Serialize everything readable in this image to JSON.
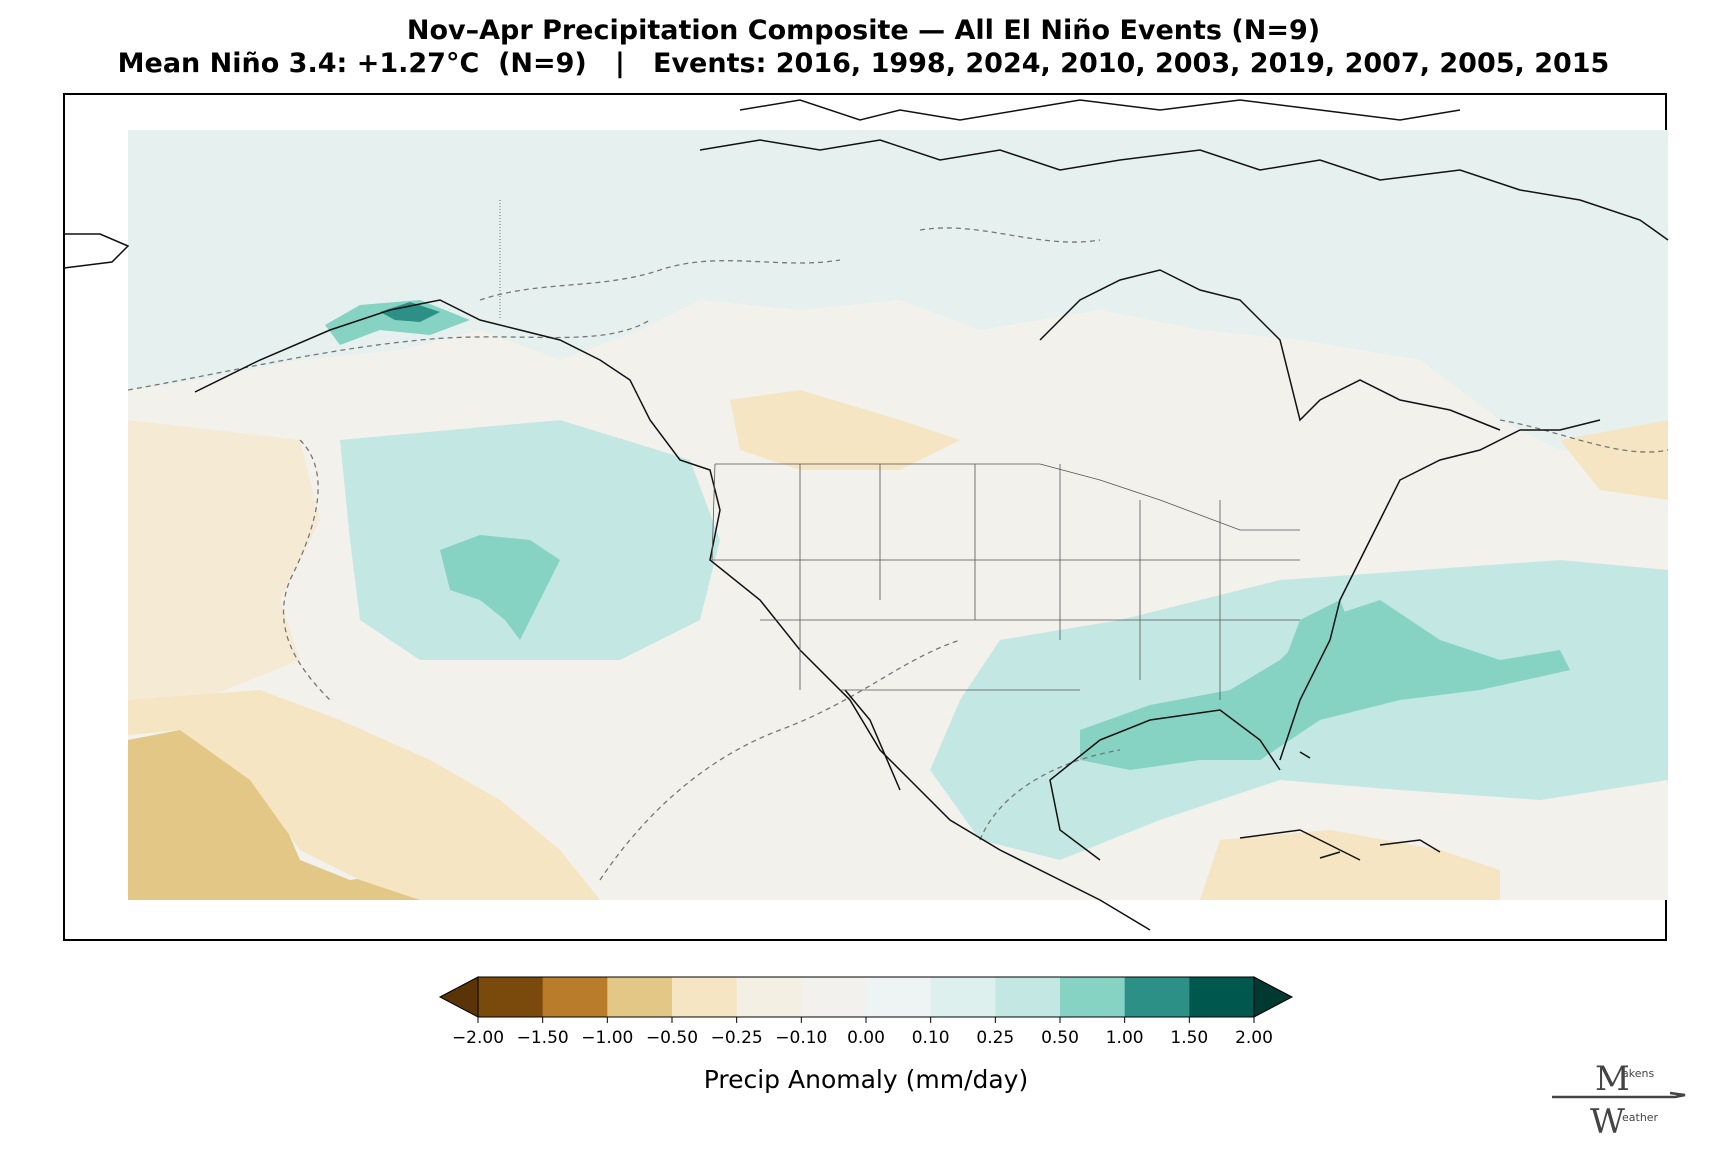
{
  "title": {
    "line1": "Nov–Apr Precipitation Composite — All El Niño Events (N=9)",
    "line2": "Mean Niño 3.4: +1.27°C  (N=9)   |   Events: 2016, 1998, 2024, 2010, 2003, 2019, 2007, 2005, 2015"
  },
  "colorbar": {
    "label": "Precip Anomaly (mm/day)",
    "ticks": [
      "−2.00",
      "−1.50",
      "−1.00",
      "−0.50",
      "−0.25",
      "−0.10",
      "0.00",
      "0.10",
      "0.25",
      "0.50",
      "1.00",
      "1.50",
      "2.00"
    ],
    "colors": [
      "#7a4a0c",
      "#b87c2a",
      "#e2c787",
      "#f5e5c2",
      "#f4efe3",
      "#f2f1ee",
      "#eef3f3",
      "#ddf0ee",
      "#c3e8e3",
      "#86d2c3",
      "#2c9087",
      "#00574d"
    ],
    "extend_low_color": "#5a3407",
    "extend_high_color": "#00392f"
  },
  "logo": {
    "line1_initial": "M",
    "line1_rest": "akens",
    "line2_initial": "W",
    "line2_rest": "eather"
  },
  "map": {
    "background_color": "#f3f1ec",
    "land_border_color": "#111111",
    "contour_style": "dashed-gray"
  }
}
